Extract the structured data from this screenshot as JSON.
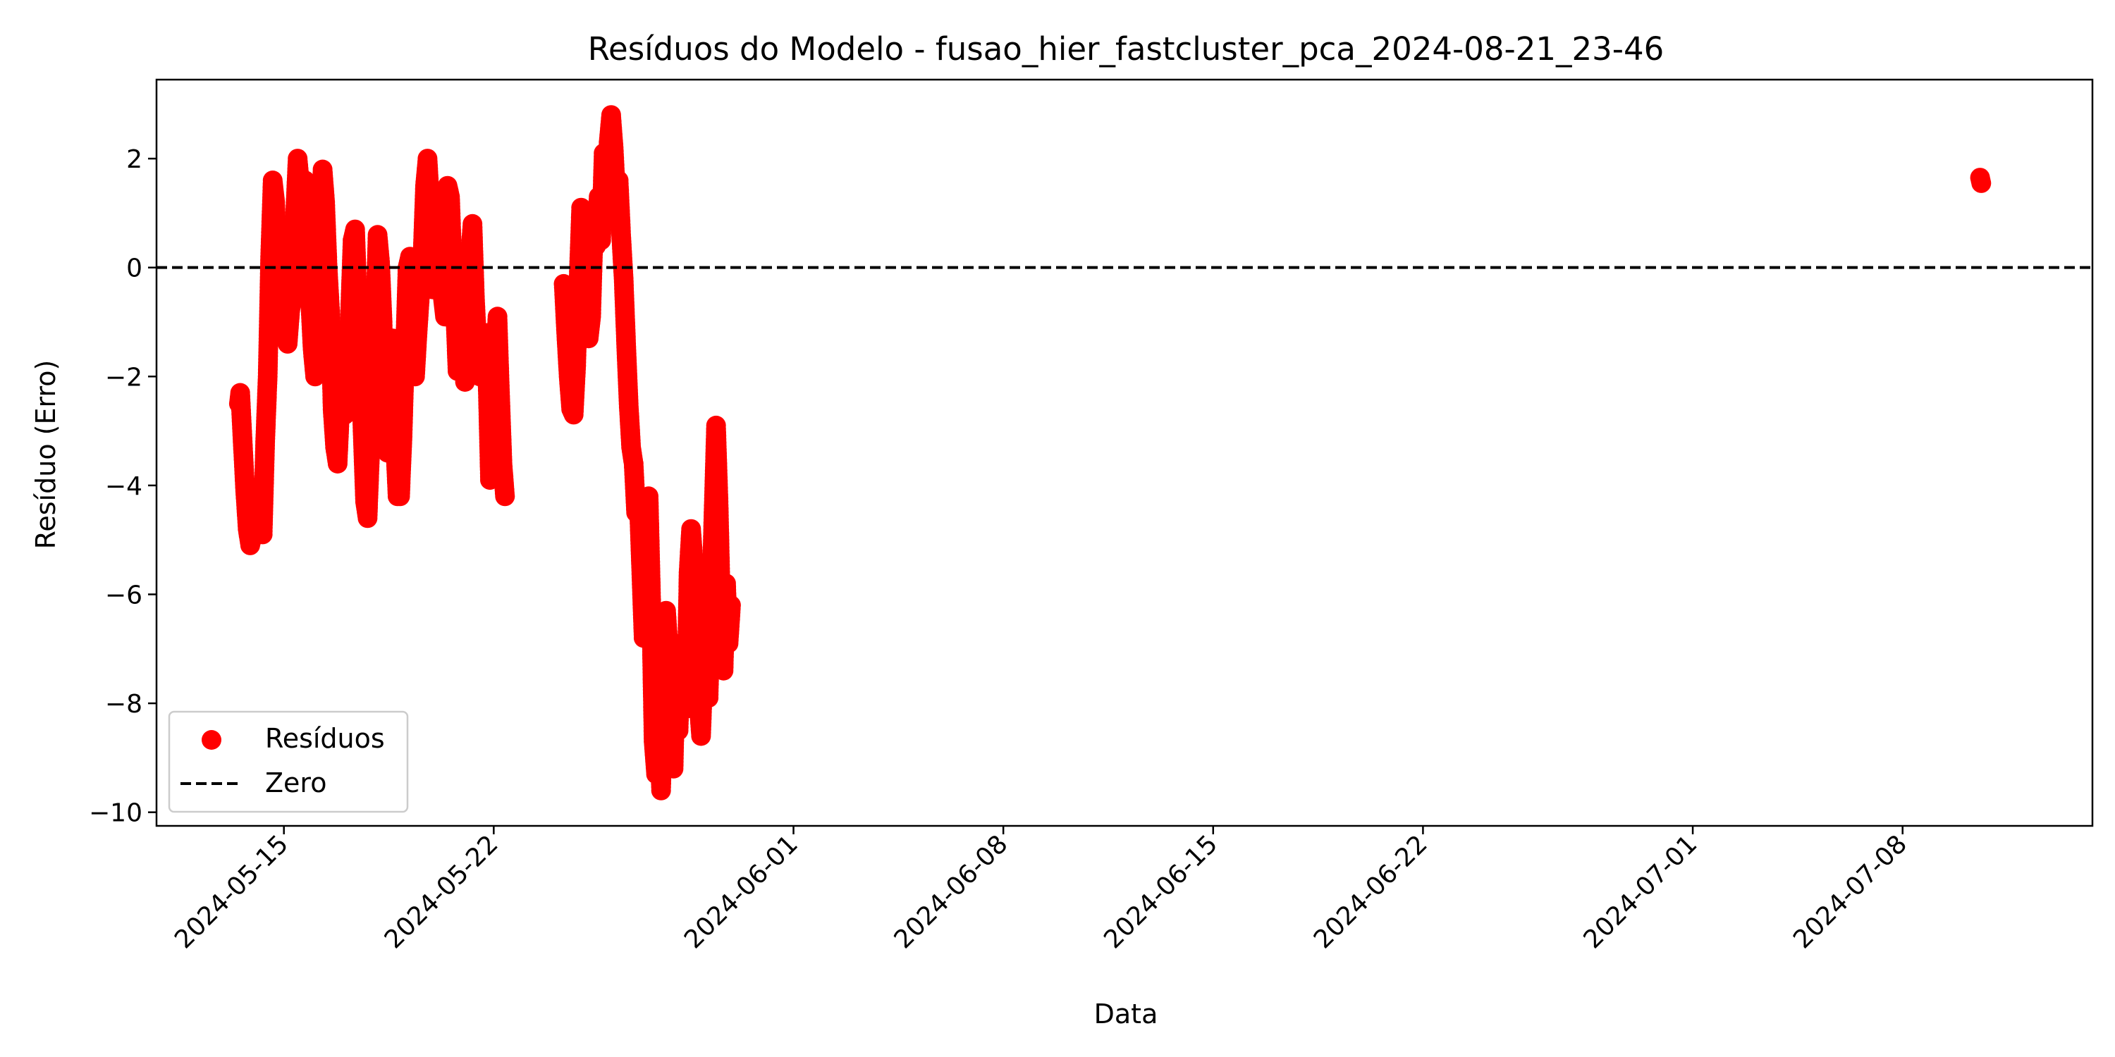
{
  "chart_data": {
    "type": "scatter",
    "title": "Resíduos do Modelo - fusao_hier_fastcluster_pca_2024-08-21_23-46",
    "xlabel": "Data",
    "ylabel": "Resíduo (Erro)",
    "x_is_date": true,
    "xlim": [
      "2024-05-10T18:00",
      "2024-07-14T08:00"
    ],
    "ylim": [
      -10.25,
      3.45
    ],
    "x_ticks": [
      "2024-05-15",
      "2024-05-22",
      "2024-06-01",
      "2024-06-08",
      "2024-06-15",
      "2024-06-22",
      "2024-07-01",
      "2024-07-08"
    ],
    "y_ticks": [
      2,
      0,
      -2,
      -4,
      -6,
      -8,
      -10
    ],
    "y_tick_labels": [
      "2",
      "0",
      "−2",
      "−4",
      "−6",
      "−8",
      "−10"
    ],
    "grid": false,
    "legend": {
      "placement": "lower-left",
      "items": [
        "Resíduos",
        "Zero"
      ]
    },
    "colors": {
      "residuals": "#ff0000",
      "zero_line": "#000000"
    },
    "reference_line": {
      "name": "Zero",
      "y": 0,
      "style": "dashed"
    },
    "series": [
      {
        "name": "Resíduos",
        "marker": "circle",
        "color": "#ff0000",
        "points": [
          [
            "2024-05-13T12:00",
            -2.5
          ],
          [
            "2024-05-13T13:00",
            -2.3
          ],
          [
            "2024-05-13T15:00",
            -3.2
          ],
          [
            "2024-05-13T17:00",
            -4.1
          ],
          [
            "2024-05-13T19:00",
            -4.8
          ],
          [
            "2024-05-13T21:00",
            -5.1
          ],
          [
            "2024-05-13T23:00",
            -4.9
          ],
          [
            "2024-05-14T01:00",
            -4.3
          ],
          [
            "2024-05-14T03:00",
            -4.8
          ],
          [
            "2024-05-14T05:00",
            -4.0
          ],
          [
            "2024-05-14T07:00",
            -4.9
          ],
          [
            "2024-05-14T09:00",
            -3.2
          ],
          [
            "2024-05-14T11:00",
            -2.0
          ],
          [
            "2024-05-14T13:00",
            0.2
          ],
          [
            "2024-05-14T15:00",
            1.6
          ],
          [
            "2024-05-14T17:00",
            1.2
          ],
          [
            "2024-05-14T19:00",
            0.0
          ],
          [
            "2024-05-14T21:00",
            -0.8
          ],
          [
            "2024-05-14T23:00",
            0.3
          ],
          [
            "2024-05-15T01:00",
            -1.0
          ],
          [
            "2024-05-15T03:00",
            -1.4
          ],
          [
            "2024-05-15T05:00",
            -0.8
          ],
          [
            "2024-05-15T07:00",
            -0.5
          ],
          [
            "2024-05-15T09:00",
            1.0
          ],
          [
            "2024-05-15T11:00",
            2.0
          ],
          [
            "2024-05-15T13:00",
            1.5
          ],
          [
            "2024-05-15T15:00",
            0.5
          ],
          [
            "2024-05-15T17:00",
            1.6
          ],
          [
            "2024-05-15T19:00",
            1.0
          ],
          [
            "2024-05-15T21:00",
            -0.6
          ],
          [
            "2024-05-15T23:00",
            -1.5
          ],
          [
            "2024-05-16T01:00",
            -2.0
          ],
          [
            "2024-05-16T03:00",
            -0.9
          ],
          [
            "2024-05-16T05:00",
            0.9
          ],
          [
            "2024-05-16T07:00",
            1.8
          ],
          [
            "2024-05-16T09:00",
            1.2
          ],
          [
            "2024-05-16T11:00",
            0.0
          ],
          [
            "2024-05-16T13:00",
            -0.8
          ],
          [
            "2024-05-16T15:00",
            -2.6
          ],
          [
            "2024-05-16T17:00",
            -3.3
          ],
          [
            "2024-05-16T19:00",
            -3.6
          ],
          [
            "2024-05-16T21:00",
            -2.6
          ],
          [
            "2024-05-16T23:00",
            -1.4
          ],
          [
            "2024-05-17T01:00",
            -2.7
          ],
          [
            "2024-05-17T03:00",
            -2.0
          ],
          [
            "2024-05-17T05:00",
            -0.8
          ],
          [
            "2024-05-17T07:00",
            0.5
          ],
          [
            "2024-05-17T09:00",
            0.7
          ],
          [
            "2024-05-17T11:00",
            -0.6
          ],
          [
            "2024-05-17T13:00",
            -1.5
          ],
          [
            "2024-05-17T15:00",
            -3.0
          ],
          [
            "2024-05-17T17:00",
            -4.3
          ],
          [
            "2024-05-17T19:00",
            -4.6
          ],
          [
            "2024-05-17T21:00",
            -3.4
          ],
          [
            "2024-05-17T23:00",
            -2.3
          ],
          [
            "2024-05-18T01:00",
            -1.0
          ],
          [
            "2024-05-18T03:00",
            0.6
          ],
          [
            "2024-05-18T05:00",
            0.1
          ],
          [
            "2024-05-18T07:00",
            -1.0
          ],
          [
            "2024-05-18T09:00",
            -2.6
          ],
          [
            "2024-05-18T11:00",
            -3.4
          ],
          [
            "2024-05-18T13:00",
            -2.5
          ],
          [
            "2024-05-18T15:00",
            -1.3
          ],
          [
            "2024-05-18T17:00",
            -3.2
          ],
          [
            "2024-05-18T19:00",
            -4.2
          ],
          [
            "2024-05-18T21:00",
            -4.2
          ],
          [
            "2024-05-18T23:00",
            -3.1
          ],
          [
            "2024-05-19T01:00",
            -1.5
          ],
          [
            "2024-05-19T03:00",
            0.0
          ],
          [
            "2024-05-19T05:00",
            0.2
          ],
          [
            "2024-05-19T07:00",
            -0.9
          ],
          [
            "2024-05-19T09:00",
            -2.0
          ],
          [
            "2024-05-19T11:00",
            -1.2
          ],
          [
            "2024-05-19T13:00",
            -0.5
          ],
          [
            "2024-05-19T15:00",
            0.2
          ],
          [
            "2024-05-19T17:00",
            1.5
          ],
          [
            "2024-05-19T19:00",
            2.0
          ],
          [
            "2024-05-19T21:00",
            1.2
          ],
          [
            "2024-05-19T23:00",
            -0.4
          ],
          [
            "2024-05-20T01:00",
            0.8
          ],
          [
            "2024-05-20T03:00",
            -0.3
          ],
          [
            "2024-05-20T05:00",
            0.6
          ],
          [
            "2024-05-20T07:00",
            -0.5
          ],
          [
            "2024-05-20T09:00",
            -0.9
          ],
          [
            "2024-05-20T11:00",
            1.5
          ],
          [
            "2024-05-20T13:00",
            1.3
          ],
          [
            "2024-05-20T15:00",
            0.0
          ],
          [
            "2024-05-20T17:00",
            -0.7
          ],
          [
            "2024-05-20T19:00",
            -1.9
          ],
          [
            "2024-05-20T21:00",
            -1.1
          ],
          [
            "2024-05-20T23:00",
            -0.4
          ],
          [
            "2024-05-21T01:00",
            -2.1
          ],
          [
            "2024-05-21T03:00",
            -1.2
          ],
          [
            "2024-05-21T05:00",
            0.2
          ],
          [
            "2024-05-21T07:00",
            0.8
          ],
          [
            "2024-05-21T09:00",
            -0.6
          ],
          [
            "2024-05-21T11:00",
            -1.5
          ],
          [
            "2024-05-21T13:00",
            -2.0
          ],
          [
            "2024-05-21T15:00",
            -1.9
          ],
          [
            "2024-05-21T17:00",
            -1.2
          ],
          [
            "2024-05-21T19:00",
            -2.0
          ],
          [
            "2024-05-21T21:00",
            -3.9
          ],
          [
            "2024-05-21T23:00",
            -3.1
          ],
          [
            "2024-05-22T01:00",
            -1.9
          ],
          [
            "2024-05-22T03:00",
            -0.9
          ],
          [
            "2024-05-22T05:00",
            -2.3
          ],
          [
            "2024-05-22T07:00",
            -3.6
          ],
          [
            "2024-05-22T09:00",
            -4.2
          ],
          [
            "2024-05-24T08:00",
            -0.3
          ],
          [
            "2024-05-24T10:00",
            -1.2
          ],
          [
            "2024-05-24T12:00",
            -2.0
          ],
          [
            "2024-05-24T14:00",
            -2.6
          ],
          [
            "2024-05-24T16:00",
            -2.7
          ],
          [
            "2024-05-24T18:00",
            -1.8
          ],
          [
            "2024-05-24T20:00",
            -0.2
          ],
          [
            "2024-05-24T22:00",
            1.1
          ],
          [
            "2024-05-25T00:00",
            0.4
          ],
          [
            "2024-05-25T02:00",
            -0.6
          ],
          [
            "2024-05-25T04:00",
            -1.3
          ],
          [
            "2024-05-25T06:00",
            -0.9
          ],
          [
            "2024-05-25T08:00",
            0.7
          ],
          [
            "2024-05-25T10:00",
            0.4
          ],
          [
            "2024-05-25T12:00",
            1.3
          ],
          [
            "2024-05-25T14:00",
            0.5
          ],
          [
            "2024-05-25T16:00",
            2.1
          ],
          [
            "2024-05-25T18:00",
            1.5
          ],
          [
            "2024-05-25T20:00",
            2.3
          ],
          [
            "2024-05-25T22:00",
            2.8
          ],
          [
            "2024-05-26T00:00",
            2.2
          ],
          [
            "2024-05-26T02:00",
            1.3
          ],
          [
            "2024-05-26T04:00",
            1.6
          ],
          [
            "2024-05-26T06:00",
            0.6
          ],
          [
            "2024-05-26T08:00",
            -0.2
          ],
          [
            "2024-05-26T10:00",
            -1.4
          ],
          [
            "2024-05-26T12:00",
            -2.5
          ],
          [
            "2024-05-26T14:00",
            -3.3
          ],
          [
            "2024-05-26T16:00",
            -3.6
          ],
          [
            "2024-05-26T18:00",
            -4.5
          ],
          [
            "2024-05-26T20:00",
            -4.2
          ],
          [
            "2024-05-26T22:00",
            -5.5
          ],
          [
            "2024-05-27T00:00",
            -6.8
          ],
          [
            "2024-05-27T02:00",
            -5.0
          ],
          [
            "2024-05-27T04:00",
            -4.2
          ],
          [
            "2024-05-27T06:00",
            -6.1
          ],
          [
            "2024-05-27T08:00",
            -8.7
          ],
          [
            "2024-05-27T10:00",
            -9.3
          ],
          [
            "2024-05-27T12:00",
            -8.1
          ],
          [
            "2024-05-27T14:00",
            -9.6
          ],
          [
            "2024-05-27T16:00",
            -7.6
          ],
          [
            "2024-05-27T18:00",
            -6.3
          ],
          [
            "2024-05-27T20:00",
            -7.0
          ],
          [
            "2024-05-27T22:00",
            -8.7
          ],
          [
            "2024-05-28T00:00",
            -9.2
          ],
          [
            "2024-05-28T02:00",
            -7.2
          ],
          [
            "2024-05-28T04:00",
            -8.5
          ],
          [
            "2024-05-28T06:00",
            -6.9
          ],
          [
            "2024-05-28T08:00",
            -7.5
          ],
          [
            "2024-05-28T10:00",
            -8.1
          ],
          [
            "2024-05-28T12:00",
            -5.6
          ],
          [
            "2024-05-28T14:00",
            -4.8
          ],
          [
            "2024-05-28T16:00",
            -5.4
          ],
          [
            "2024-05-28T18:00",
            -6.8
          ],
          [
            "2024-05-28T20:00",
            -8.0
          ],
          [
            "2024-05-28T22:00",
            -8.6
          ],
          [
            "2024-05-29T00:00",
            -7.4
          ],
          [
            "2024-05-29T02:00",
            -6.6
          ],
          [
            "2024-05-29T04:00",
            -7.9
          ],
          [
            "2024-05-29T06:00",
            -6.2
          ],
          [
            "2024-05-29T08:00",
            -4.5
          ],
          [
            "2024-05-29T10:00",
            -2.9
          ],
          [
            "2024-05-29T12:00",
            -4.3
          ],
          [
            "2024-05-29T14:00",
            -6.3
          ],
          [
            "2024-05-29T16:00",
            -7.4
          ],
          [
            "2024-05-29T18:00",
            -5.8
          ],
          [
            "2024-05-29T20:00",
            -6.9
          ],
          [
            "2024-05-29T22:00",
            -6.2
          ],
          [
            "2024-07-10T14:00",
            1.65
          ],
          [
            "2024-07-10T15:00",
            1.55
          ]
        ]
      }
    ]
  }
}
